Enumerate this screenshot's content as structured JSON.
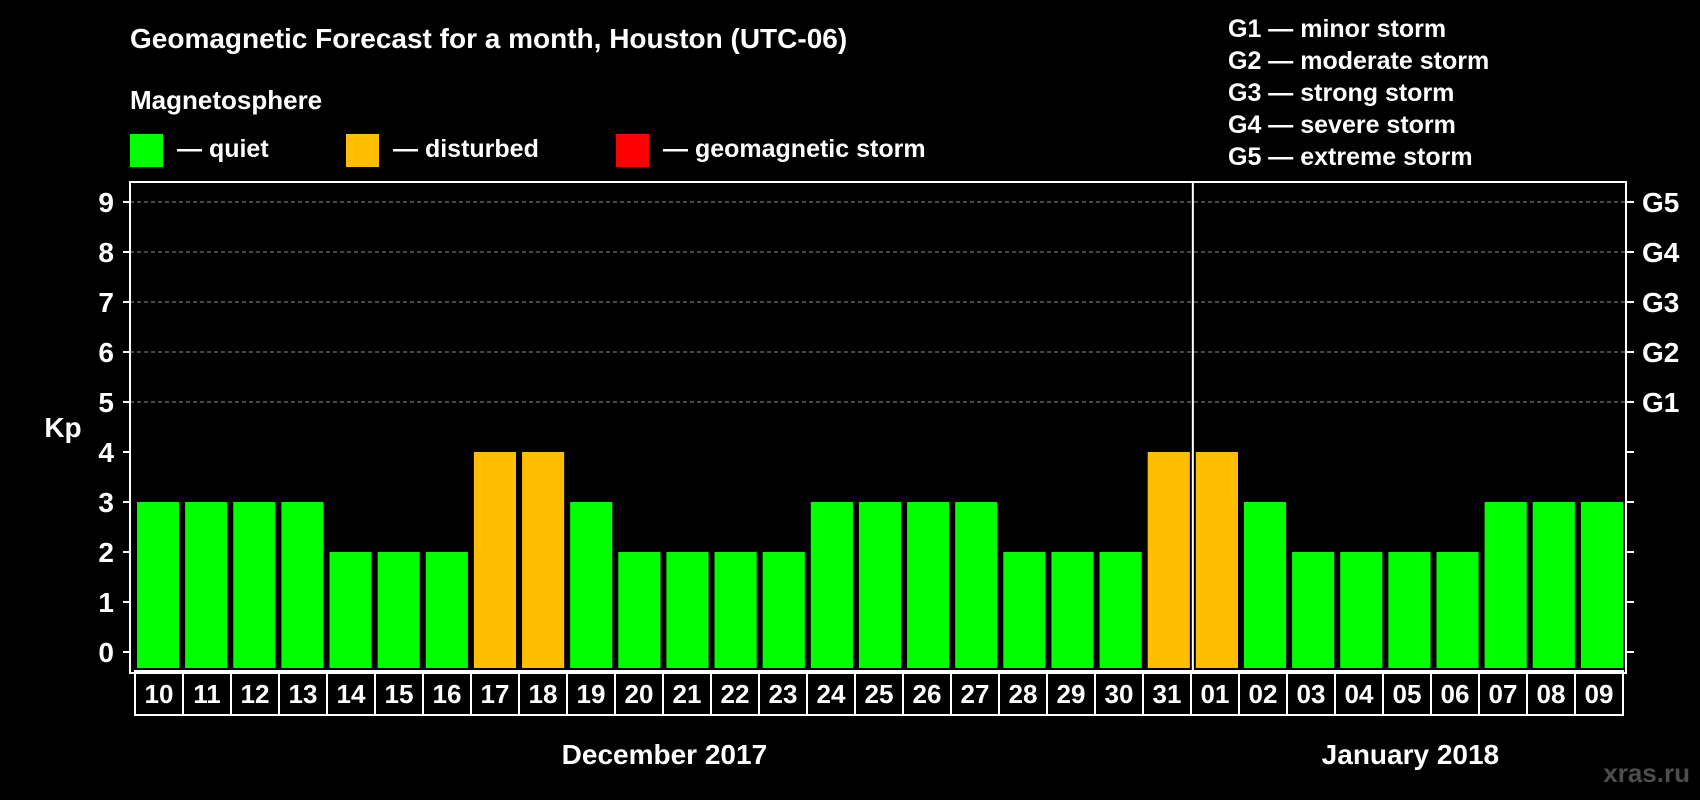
{
  "chart_data": {
    "type": "bar",
    "title": "Geomagnetic Forecast for a month, Houston (UTC-06)",
    "ylabel": "Kp",
    "ylim": [
      0,
      9
    ],
    "yticks": [
      "0",
      "1",
      "2",
      "3",
      "4",
      "5",
      "6",
      "7",
      "8",
      "9"
    ],
    "right_ticks": [
      {
        "kp": 5,
        "label": "G1"
      },
      {
        "kp": 6,
        "label": "G2"
      },
      {
        "kp": 7,
        "label": "G3"
      },
      {
        "kp": 8,
        "label": "G4"
      },
      {
        "kp": 9,
        "label": "G5"
      }
    ],
    "categories": [
      "10",
      "11",
      "12",
      "13",
      "14",
      "15",
      "16",
      "17",
      "18",
      "19",
      "20",
      "21",
      "22",
      "23",
      "24",
      "25",
      "26",
      "27",
      "28",
      "29",
      "30",
      "31",
      "01",
      "02",
      "03",
      "04",
      "05",
      "06",
      "07",
      "08",
      "09"
    ],
    "values": [
      3,
      3,
      3,
      3,
      2,
      2,
      2,
      4,
      4,
      3,
      2,
      2,
      2,
      2,
      3,
      3,
      3,
      3,
      2,
      2,
      2,
      4,
      4,
      3,
      2,
      2,
      2,
      2,
      3,
      3,
      3
    ],
    "months": [
      {
        "label": "December 2017",
        "from_index": 0,
        "to_index": 21
      },
      {
        "label": "January 2018",
        "from_index": 22,
        "to_index": 30
      }
    ],
    "month_divider_after_index": 21,
    "legend": {
      "heading": "Magnetosphere",
      "items": [
        {
          "label": "— quiet",
          "color": "#00ff00"
        },
        {
          "label": "— disturbed",
          "color": "#ffbf00"
        },
        {
          "label": "— geomagnetic storm",
          "color": "#ff0000"
        }
      ]
    },
    "storm_scale": [
      "G1 — minor storm",
      "G2 — moderate storm",
      "G3 — strong storm",
      "G4 — severe storm",
      "G5 — extreme storm"
    ],
    "thresholds": {
      "disturbed_min": 4,
      "storm_min": 5
    },
    "grid": "dashed at Kp 5-9"
  },
  "watermark": "xras.ru"
}
